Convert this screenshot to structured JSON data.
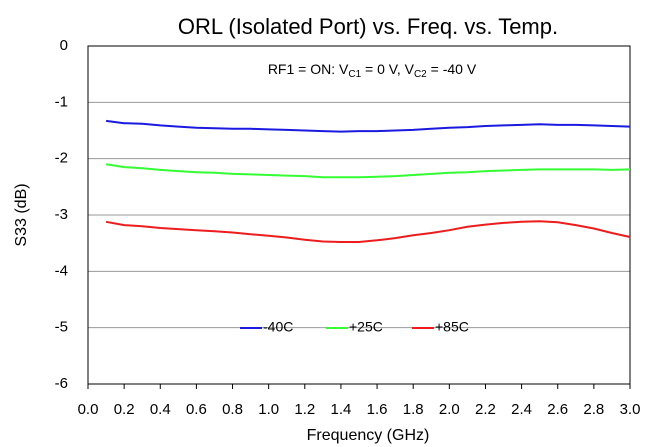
{
  "chart_data": {
    "type": "line",
    "title": "ORL (Isolated Port) vs. Freq. vs. Temp.",
    "xlabel": "Frequency (GHz)",
    "ylabel": "S33 (dB)",
    "annotation": [
      "RF1 = ON: V",
      "C1",
      " = 0 V, V",
      "C2",
      " = -40 V"
    ],
    "x": [
      0.1,
      0.2,
      0.3,
      0.4,
      0.5,
      0.6,
      0.7,
      0.8,
      0.9,
      1.0,
      1.1,
      1.2,
      1.3,
      1.4,
      1.5,
      1.6,
      1.7,
      1.8,
      1.9,
      2.0,
      2.1,
      2.2,
      2.3,
      2.4,
      2.5,
      2.6,
      2.7,
      2.8,
      2.9,
      3.0
    ],
    "series": [
      {
        "name": "-40C",
        "color": "#1a1ae0",
        "values": [
          -1.33,
          -1.37,
          -1.38,
          -1.41,
          -1.43,
          -1.45,
          -1.46,
          -1.47,
          -1.47,
          -1.48,
          -1.49,
          -1.5,
          -1.51,
          -1.52,
          -1.51,
          -1.51,
          -1.5,
          -1.49,
          -1.47,
          -1.45,
          -1.44,
          -1.42,
          -1.41,
          -1.4,
          -1.39,
          -1.4,
          -1.4,
          -1.41,
          -1.42,
          -1.43
        ]
      },
      {
        "name": "+25C",
        "color": "#33ff33",
        "values": [
          -2.1,
          -2.15,
          -2.17,
          -2.2,
          -2.22,
          -2.24,
          -2.25,
          -2.27,
          -2.28,
          -2.29,
          -2.3,
          -2.31,
          -2.33,
          -2.33,
          -2.33,
          -2.32,
          -2.31,
          -2.29,
          -2.27,
          -2.25,
          -2.24,
          -2.22,
          -2.21,
          -2.2,
          -2.19,
          -2.19,
          -2.19,
          -2.19,
          -2.2,
          -2.19
        ]
      },
      {
        "name": "+85C",
        "color": "#ee1c1c",
        "values": [
          -3.12,
          -3.18,
          -3.2,
          -3.23,
          -3.25,
          -3.27,
          -3.29,
          -3.31,
          -3.34,
          -3.37,
          -3.4,
          -3.44,
          -3.47,
          -3.48,
          -3.48,
          -3.45,
          -3.41,
          -3.36,
          -3.32,
          -3.27,
          -3.21,
          -3.17,
          -3.14,
          -3.12,
          -3.11,
          -3.13,
          -3.18,
          -3.24,
          -3.32,
          -3.39
        ]
      }
    ],
    "xlim": [
      0,
      3
    ],
    "xticks": [
      {
        "value": 0,
        "label": "0.0"
      },
      0.2,
      0.4,
      0.6,
      0.8,
      {
        "value": 1,
        "label": "1.0"
      },
      1.2,
      1.4,
      1.6,
      1.8,
      {
        "value": 2,
        "label": "2.0"
      },
      2.2,
      2.4,
      2.6,
      2.8,
      {
        "value": 3,
        "label": "3.0"
      }
    ],
    "ylim": [
      -6,
      0
    ],
    "yticks": [
      0,
      -1,
      -2,
      -3,
      -4,
      -5,
      -6
    ],
    "grid": true,
    "legend": "lower center"
  }
}
